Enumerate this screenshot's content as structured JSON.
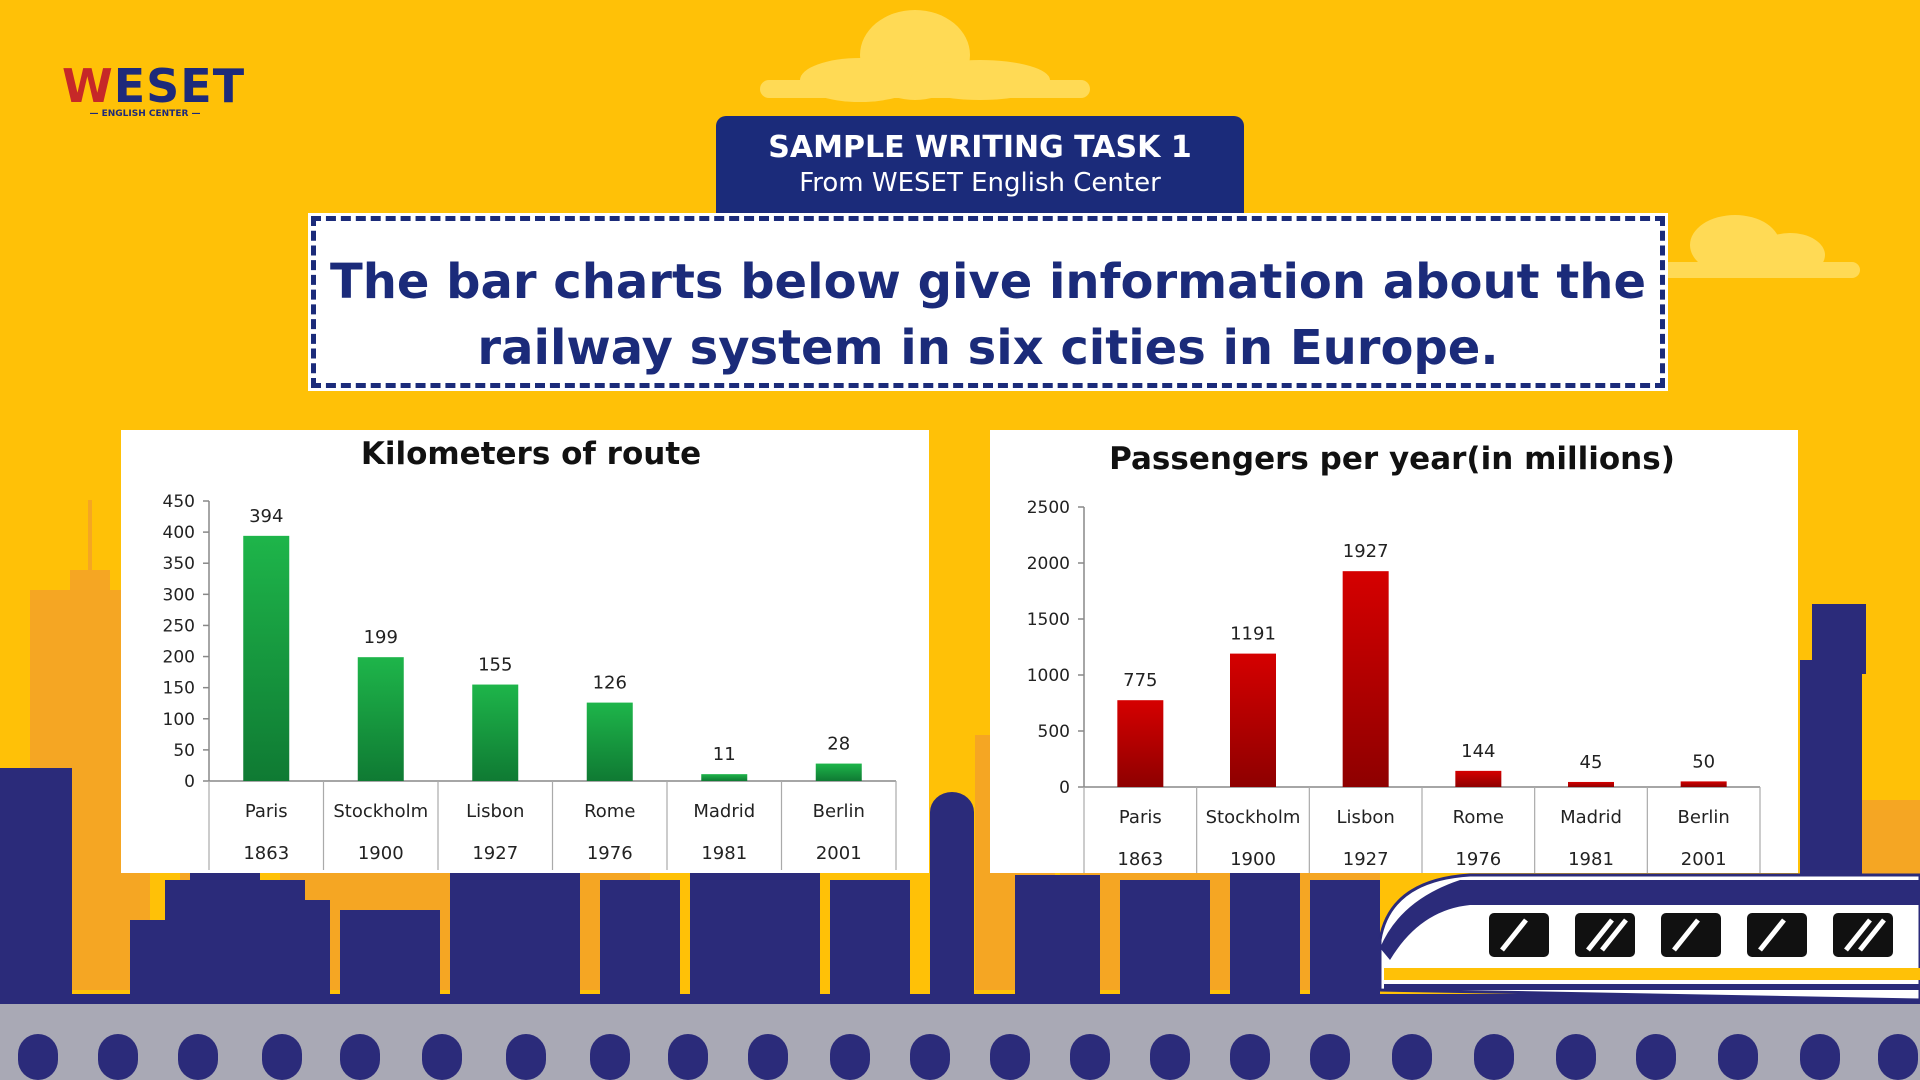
{
  "brand": {
    "name_accent": "W",
    "name_rest": "ESET",
    "tagline": "ENGLISH CENTER"
  },
  "header": {
    "title": "SAMPLE WRITING TASK 1",
    "subtitle": "From WESET English Center"
  },
  "question": {
    "line1": "The bar charts below give information about the",
    "line2": "railway system in six cities in Europe."
  },
  "colors": {
    "background": "#FFC107",
    "navy": "#1B2B7A",
    "green": "#1EB54A",
    "red": "#D50000",
    "skyline_orange": "#F5A623"
  },
  "chart_data": [
    {
      "type": "bar",
      "title": "Kilometers of route",
      "categories": [
        "Paris",
        "Stockholm",
        "Lisbon",
        "Rome",
        "Madrid",
        "Berlin"
      ],
      "category_years": [
        "1863",
        "1900",
        "1927",
        "1976",
        "1981",
        "2001"
      ],
      "values": [
        394,
        199,
        155,
        126,
        11,
        28
      ],
      "ylim": [
        0,
        450
      ],
      "yticks": [
        0,
        50,
        100,
        150,
        200,
        250,
        300,
        350,
        400,
        450
      ],
      "bar_color": "#1EB54A",
      "xlabel": "",
      "ylabel": "",
      "grid": false,
      "legend": "none"
    },
    {
      "type": "bar",
      "title": "Passengers per year(in millions)",
      "categories": [
        "Paris",
        "Stockholm",
        "Lisbon",
        "Rome",
        "Madrid",
        "Berlin"
      ],
      "category_years": [
        "1863",
        "1900",
        "1927",
        "1976",
        "1981",
        "2001"
      ],
      "values": [
        775,
        1191,
        1927,
        144,
        45,
        50
      ],
      "ylim": [
        0,
        2500
      ],
      "yticks": [
        0,
        500,
        1000,
        1500,
        2000,
        2500
      ],
      "bar_color": "#D50000",
      "xlabel": "",
      "ylabel": "",
      "grid": false,
      "legend": "none"
    }
  ]
}
